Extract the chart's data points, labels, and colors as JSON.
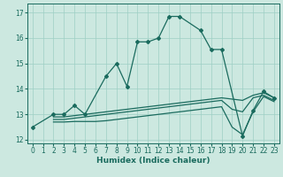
{
  "xlabel": "Humidex (Indice chaleur)",
  "xlim": [
    -0.5,
    23.5
  ],
  "ylim": [
    11.85,
    17.35
  ],
  "yticks": [
    12,
    13,
    14,
    15,
    16,
    17
  ],
  "xticks": [
    0,
    1,
    2,
    3,
    4,
    5,
    6,
    7,
    8,
    9,
    10,
    11,
    12,
    13,
    14,
    15,
    16,
    17,
    18,
    19,
    20,
    21,
    22,
    23
  ],
  "bg_color": "#cce8e0",
  "grid_color": "#9ecfc4",
  "line_color": "#1a6b5e",
  "main_line": {
    "x": [
      0,
      2,
      3,
      4,
      5,
      7,
      8,
      9,
      10,
      11,
      12,
      13,
      14,
      16,
      17,
      18,
      20,
      21,
      22,
      23
    ],
    "y": [
      12.5,
      13.0,
      13.0,
      13.35,
      13.0,
      14.5,
      15.0,
      14.1,
      15.85,
      15.85,
      16.0,
      16.85,
      16.85,
      16.3,
      15.55,
      15.55,
      12.15,
      13.15,
      13.9,
      13.65
    ]
  },
  "line1": {
    "x": [
      2,
      3,
      4,
      5,
      6,
      7,
      8,
      9,
      10,
      11,
      12,
      13,
      14,
      15,
      16,
      17,
      18,
      19,
      20,
      21,
      22,
      23
    ],
    "y": [
      12.9,
      12.9,
      12.95,
      13.0,
      13.05,
      13.1,
      13.15,
      13.2,
      13.25,
      13.3,
      13.35,
      13.4,
      13.45,
      13.5,
      13.55,
      13.6,
      13.65,
      13.6,
      13.55,
      13.75,
      13.85,
      13.65
    ]
  },
  "line2": {
    "x": [
      2,
      3,
      4,
      5,
      6,
      7,
      8,
      9,
      10,
      11,
      12,
      13,
      14,
      15,
      16,
      17,
      18,
      19,
      20,
      21,
      22,
      23
    ],
    "y": [
      12.8,
      12.8,
      12.85,
      12.9,
      12.95,
      13.0,
      13.05,
      13.1,
      13.15,
      13.2,
      13.25,
      13.3,
      13.35,
      13.4,
      13.45,
      13.5,
      13.55,
      13.2,
      13.1,
      13.65,
      13.75,
      13.55
    ]
  },
  "line3": {
    "x": [
      2,
      3,
      4,
      5,
      6,
      7,
      8,
      9,
      10,
      11,
      12,
      13,
      14,
      15,
      16,
      17,
      18,
      19,
      20,
      21,
      22,
      23
    ],
    "y": [
      12.7,
      12.7,
      12.72,
      12.72,
      12.72,
      12.75,
      12.8,
      12.85,
      12.9,
      12.95,
      13.0,
      13.05,
      13.1,
      13.15,
      13.2,
      13.25,
      13.3,
      12.5,
      12.2,
      13.1,
      13.7,
      13.5
    ]
  }
}
